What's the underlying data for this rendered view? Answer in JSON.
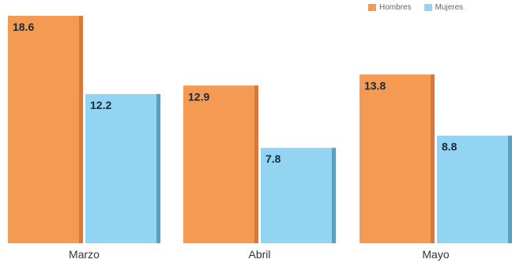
{
  "chart_data": {
    "type": "bar",
    "categories": [
      "Marzo",
      "Abril",
      "Mayo"
    ],
    "series": [
      {
        "name": "Hombres",
        "values": [
          18.6,
          12.9,
          13.8
        ],
        "labels": [
          "18.6",
          "12.9",
          "13.8"
        ],
        "color": "#f59a52",
        "shade": "#d7793a"
      },
      {
        "name": "Mujeres",
        "values": [
          12.2,
          7.8,
          8.8
        ],
        "labels": [
          "12.2",
          "7.8",
          "8.8"
        ],
        "color": "#92d4f2",
        "shade": "#5e9fc0"
      }
    ],
    "ylim": [
      0,
      18.6
    ],
    "legend_position": "top-right",
    "grid": false
  }
}
